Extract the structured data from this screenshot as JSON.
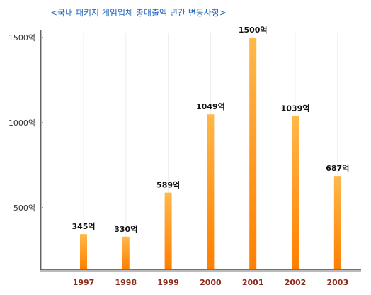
{
  "chart_data": {
    "type": "bar",
    "title": "<국내 패키지 게임업체 총매출액 년간 변동사항>",
    "categories": [
      "1997",
      "1998",
      "1999",
      "2000",
      "2001",
      "2002",
      "2003"
    ],
    "values": [
      345,
      330,
      589,
      1049,
      1500,
      1039,
      687
    ],
    "data_labels": [
      "345억",
      "330억",
      "589억",
      "1049억",
      "1500억",
      "1039억",
      "687억"
    ],
    "yticks": [
      {
        "value": 500,
        "label": "500억"
      },
      {
        "value": 1000,
        "label": "1000억"
      },
      {
        "value": 1500,
        "label": "1500억"
      }
    ],
    "ylim": [
      0,
      1700
    ],
    "grid": "vertical",
    "colors": {
      "bar_top": "#ffb84a",
      "bar_bottom": "#ff7f00",
      "axis": "#444444",
      "axis_shadow": "#bbbbbb",
      "grid": "#ececec",
      "title": "#2266bb",
      "xtick": "#8b2a1a"
    }
  }
}
